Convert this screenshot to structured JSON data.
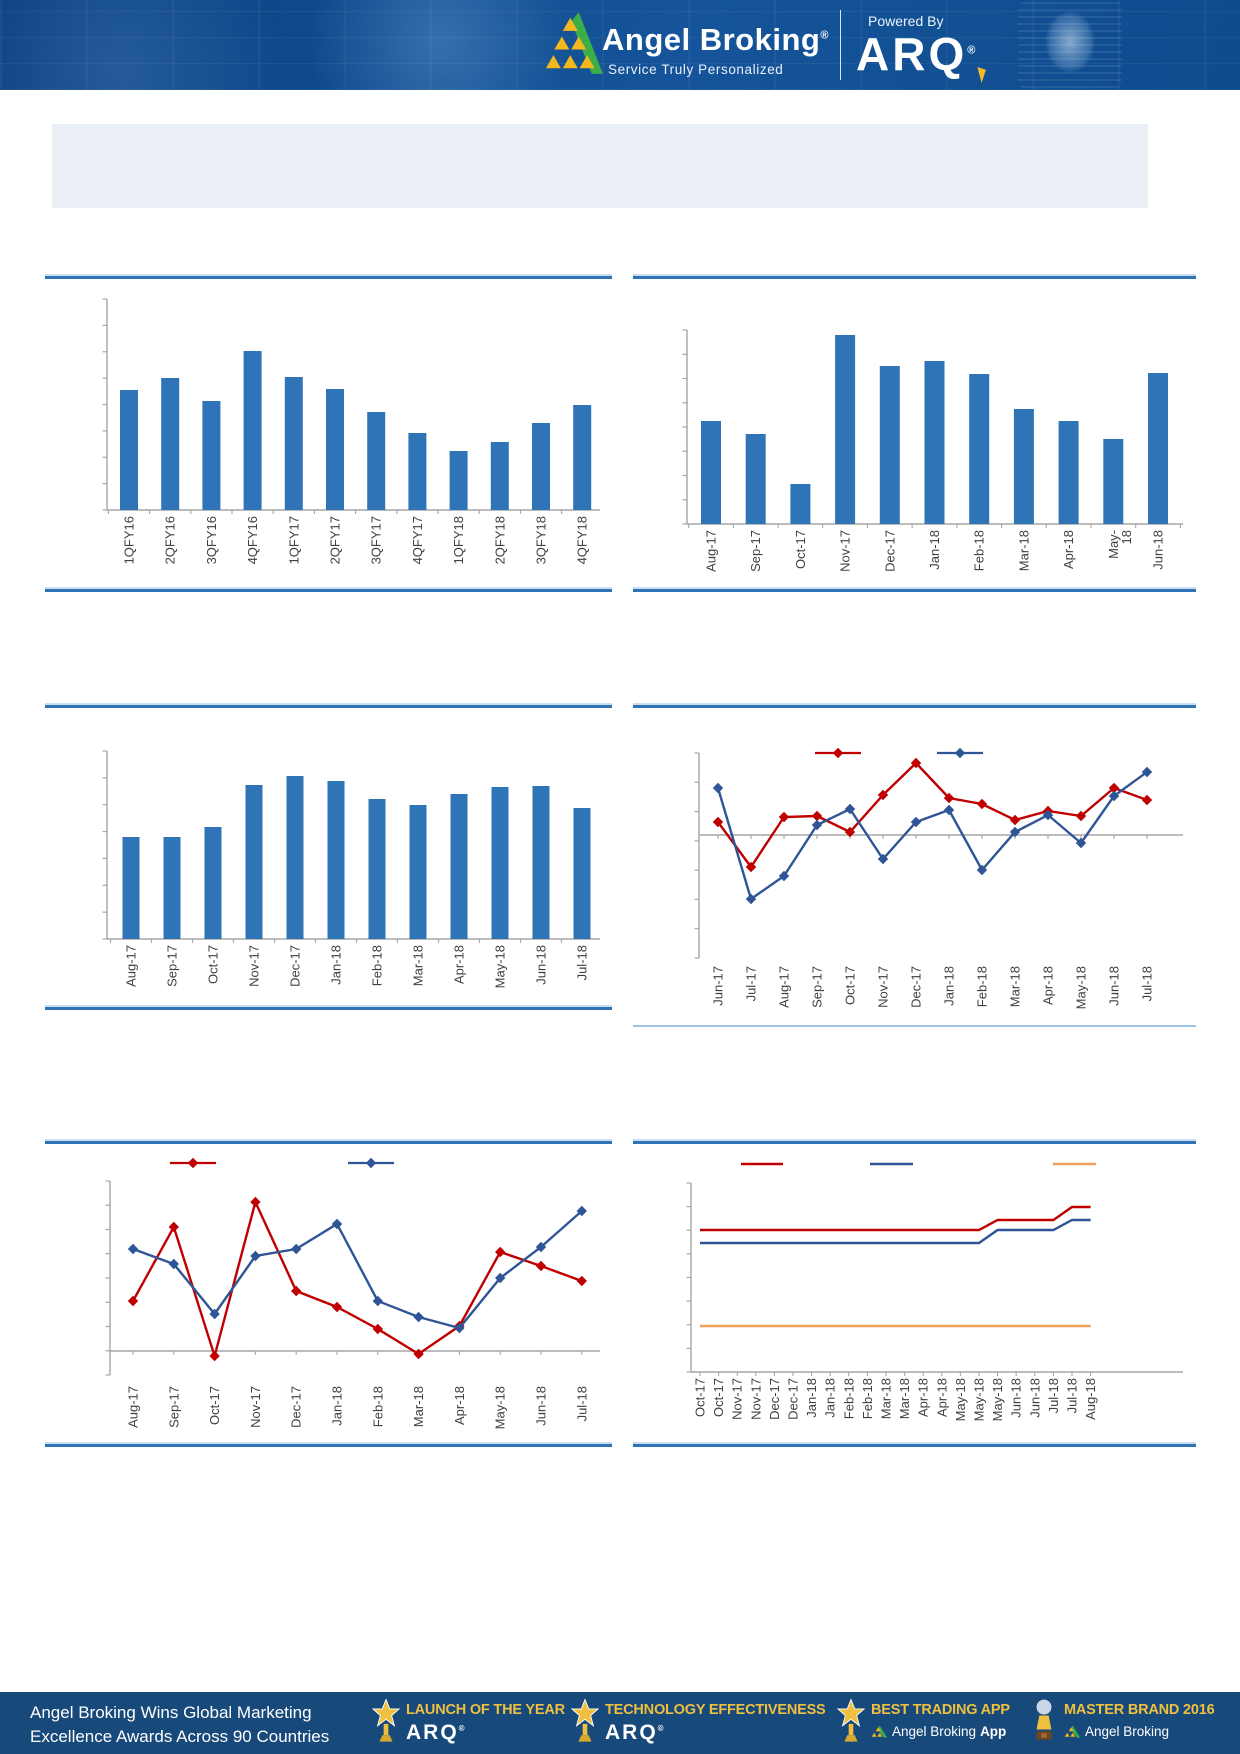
{
  "marks": {
    "reg": "®"
  },
  "header": {
    "brand": "Angel Broking",
    "tagline": "Service Truly Personalized",
    "powered_by": "Powered By",
    "arq": "ARQ"
  },
  "banner": {
    "text": ""
  },
  "colors": {
    "bar_blue": "#2E74B6",
    "line_red": "#C00000",
    "line_navy": "#2F5597",
    "line_orange": "#ED9F5B",
    "rule_dark": "#2E74B5",
    "rule_light": "#9DC3E6",
    "axis_gray": "#A6A6A6",
    "header_blue": "#0F4B8D",
    "footer_blue": "#17497A",
    "gold": "#EFBF3F",
    "banner_gray": "#E9EFF5"
  },
  "chart_data": [
    {
      "id": "quarterly-bar-top-left",
      "type": "bar",
      "categories": [
        "1QFY16",
        "2QFY16",
        "3QFY16",
        "4QFY16",
        "1QFY17",
        "2QFY17",
        "3QFY17",
        "4QFY17",
        "1QFY18",
        "2QFY18",
        "3QFY18",
        "4QFY18"
      ],
      "values": [
        120,
        132,
        109,
        159,
        133,
        121,
        98,
        77,
        59,
        68,
        87,
        105
      ],
      "color": "#2E74B6",
      "ylim": [
        0,
        211
      ],
      "grid": false
    },
    {
      "id": "monthly-bar-top-right",
      "type": "bar",
      "categories": [
        "Aug-17",
        "Sep-17",
        "Oct-17",
        "Nov-17",
        "Dec-17",
        "Jan-18",
        "Feb-18",
        "Mar-18",
        "Apr-18",
        "May-\n18",
        "Jun-18"
      ],
      "values": [
        103,
        90,
        40,
        189,
        158,
        163,
        150,
        115,
        103,
        85,
        151
      ],
      "color": "#2E74B6",
      "ylim": [
        0,
        194
      ],
      "grid": false
    },
    {
      "id": "monthly-bar-mid-left",
      "type": "bar",
      "categories": [
        "Aug-17",
        "Sep-17",
        "Oct-17",
        "Nov-17",
        "Dec-17",
        "Jan-18",
        "Feb-18",
        "Mar-18",
        "Apr-18",
        "May-18",
        "Jun-18",
        "Jul-18"
      ],
      "values": [
        102,
        102,
        112,
        154,
        163,
        158,
        140,
        134,
        145,
        152,
        153,
        131
      ],
      "color": "#2E74B6",
      "ylim": [
        0,
        188
      ],
      "grid": false
    },
    {
      "id": "dual-line-mid-right",
      "type": "line",
      "categories": [
        "Jun-17",
        "Jul-17",
        "Aug-17",
        "Sep-17",
        "Oct-17",
        "Nov-17",
        "Dec-17",
        "Jan-18",
        "Feb-18",
        "Mar-18",
        "Apr-18",
        "May-18",
        "Jun-18",
        "Jul-18"
      ],
      "series": [
        {
          "name": "red",
          "color": "#C00000",
          "values": [
            13,
            -32,
            18,
            19,
            3,
            40,
            72,
            37,
            31,
            15,
            24,
            19,
            47,
            35
          ]
        },
        {
          "name": "blue",
          "color": "#2F5597",
          "values": [
            47,
            -64,
            -41,
            10,
            26,
            -24,
            13,
            25,
            -35,
            3,
            20,
            -8,
            39,
            63
          ]
        }
      ],
      "ylim": [
        -123,
        82
      ],
      "legend_labels_visible": false,
      "grid": false
    },
    {
      "id": "dual-line-bottom-left",
      "type": "line",
      "categories": [
        "Aug-17",
        "Sep-17",
        "Oct-17",
        "Nov-17",
        "Dec-17",
        "Jan-18",
        "Feb-18",
        "Mar-18",
        "Apr-18",
        "May-18",
        "Jun-18",
        "Jul-18"
      ],
      "series": [
        {
          "name": "red",
          "color": "#C00000",
          "values": [
            50,
            124,
            -5,
            149,
            60,
            44,
            22,
            -3,
            25,
            99,
            85,
            70
          ]
        },
        {
          "name": "blue",
          "color": "#2F5597",
          "values": [
            102,
            87,
            37,
            95,
            102,
            127,
            50,
            34,
            23,
            73,
            104,
            140
          ]
        }
      ],
      "ylim": [
        -24,
        170
      ],
      "legend_labels_visible": false,
      "grid": false
    },
    {
      "id": "triple-step-bottom-right",
      "type": "line",
      "categories": [
        "Oct-17",
        "Oct-17",
        "Nov-17",
        "Nov-17",
        "Dec-17",
        "Dec-17",
        "Jan-18",
        "Jan-18",
        "Feb-18",
        "Feb-18",
        "Mar-18",
        "Mar-18",
        "Apr-18",
        "Apr-18",
        "May-18",
        "May-18",
        "May-18",
        "Jun-18",
        "Jun-18",
        "Jul-18",
        "Jul-18",
        "Aug-18"
      ],
      "series": [
        {
          "name": "red",
          "color": "#C00000",
          "values": [
            142,
            142,
            142,
            142,
            142,
            142,
            142,
            142,
            142,
            142,
            142,
            142,
            142,
            142,
            142,
            142,
            152,
            152,
            152,
            152,
            165,
            165
          ]
        },
        {
          "name": "blue",
          "color": "#2F5597",
          "values": [
            129,
            129,
            129,
            129,
            129,
            129,
            129,
            129,
            129,
            129,
            129,
            129,
            129,
            129,
            129,
            129,
            142,
            142,
            142,
            142,
            152,
            152
          ]
        },
        {
          "name": "orange",
          "color": "#ED9F5B",
          "values": [
            46,
            46,
            46,
            46,
            46,
            46,
            46,
            46,
            46,
            46,
            46,
            46,
            46,
            46,
            46,
            46,
            46,
            46,
            46,
            46,
            46,
            46
          ]
        }
      ],
      "ylim": [
        0,
        189
      ],
      "legend_labels_visible": false,
      "grid": false
    }
  ],
  "footer": {
    "headline1": "Angel Broking Wins Global Marketing",
    "headline2": "Excellence Awards Across 90 Countries",
    "awards": [
      {
        "title": "LAUNCH OF THE YEAR",
        "brand": "ARQ"
      },
      {
        "title": "TECHNOLOGY EFFECTIVENESS",
        "brand": "ARQ"
      },
      {
        "title": "BEST TRADING APP",
        "brand": "Angel Broking",
        "brand_bold": "App"
      },
      {
        "title": "MASTER BRAND 2016",
        "brand": "Angel Broking"
      }
    ]
  }
}
